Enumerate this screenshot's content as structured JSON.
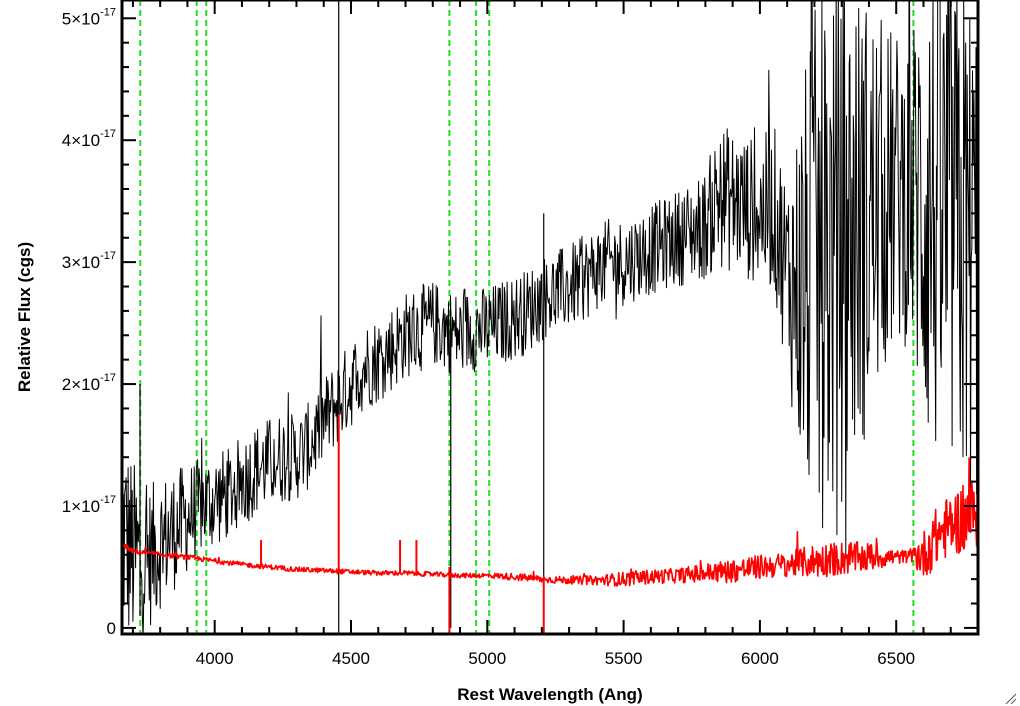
{
  "chart_data": {
    "type": "line",
    "xlabel": "Rest Wavelength (Ang)",
    "ylabel": "Relative Flux (cgs)",
    "xlim": [
      3660,
      6800
    ],
    "ylim": [
      -0.05,
      5.15
    ],
    "y_unit_exponent": "-17",
    "x_ticks": [
      4000,
      4500,
      5000,
      5500,
      6000,
      6500
    ],
    "x_tick_labels": [
      "4000",
      "4500",
      "5000",
      "5500",
      "6000",
      "6500"
    ],
    "y_ticks": [
      0,
      1,
      2,
      3,
      4,
      5
    ],
    "y_tick_labels": [
      {
        "mantissa": "0",
        "times": "",
        "exponent": ""
      },
      {
        "mantissa": "1",
        "times": "×10",
        "exponent": "-17"
      },
      {
        "mantissa": "2",
        "times": "×10",
        "exponent": "-17"
      },
      {
        "mantissa": "3",
        "times": "×10",
        "exponent": "-17"
      },
      {
        "mantissa": "4",
        "times": "×10",
        "exponent": "-17"
      },
      {
        "mantissa": "5",
        "times": "×10",
        "exponent": "-17"
      }
    ],
    "grid": false,
    "vertical_markers": {
      "x": [
        3727,
        3934,
        3969,
        4861,
        4959,
        5007,
        6563
      ],
      "color": "#22dd22",
      "style": "dashed"
    },
    "series": [
      {
        "color": "#000000",
        "style": "noisy",
        "x": [
          3660,
          3700,
          3750,
          3800,
          3850,
          3900,
          3950,
          4000,
          4050,
          4100,
          4150,
          4200,
          4250,
          4300,
          4350,
          4400,
          4450,
          4500,
          4550,
          4600,
          4650,
          4700,
          4750,
          4800,
          4850,
          4900,
          4950,
          5000,
          5050,
          5100,
          5150,
          5200,
          5250,
          5300,
          5350,
          5400,
          5450,
          5500,
          5550,
          5600,
          5650,
          5700,
          5750,
          5800,
          5850,
          5900,
          5950,
          6000,
          6050,
          6100,
          6150,
          6200,
          6250,
          6300,
          6350,
          6400,
          6450,
          6500,
          6550,
          6600,
          6650,
          6700,
          6750,
          6800
        ],
        "y": [
          0.8,
          0.6,
          0.55,
          0.7,
          0.8,
          0.9,
          1.0,
          1.05,
          1.1,
          1.2,
          1.3,
          1.35,
          1.4,
          1.4,
          1.5,
          1.7,
          1.85,
          2.0,
          2.15,
          2.2,
          2.3,
          2.4,
          2.45,
          2.5,
          2.45,
          2.4,
          2.45,
          2.45,
          2.5,
          2.55,
          2.6,
          2.7,
          2.75,
          2.8,
          2.85,
          2.95,
          3.0,
          3.0,
          3.05,
          3.1,
          3.15,
          3.2,
          3.25,
          3.3,
          3.55,
          3.5,
          3.45,
          3.4,
          3.45,
          2.9,
          2.8,
          2.9,
          3.0,
          3.2,
          3.3,
          3.4,
          3.5,
          3.6,
          3.6,
          3.5,
          3.4,
          3.3,
          3.2,
          3.0
        ],
        "noise": [
          0.9,
          0.8,
          0.6,
          0.55,
          0.5,
          0.45,
          0.4,
          0.4,
          0.38,
          0.38,
          0.38,
          0.38,
          0.38,
          0.36,
          0.36,
          0.36,
          0.36,
          0.36,
          0.36,
          0.36,
          0.36,
          0.36,
          0.36,
          0.35,
          0.35,
          0.35,
          0.35,
          0.35,
          0.35,
          0.35,
          0.35,
          0.35,
          0.35,
          0.35,
          0.35,
          0.35,
          0.36,
          0.36,
          0.36,
          0.37,
          0.38,
          0.4,
          0.42,
          0.45,
          0.6,
          0.6,
          0.6,
          0.6,
          0.7,
          0.8,
          1.6,
          2.2,
          2.2,
          2.2,
          2.0,
          1.8,
          1.5,
          1.3,
          1.3,
          2.0,
          2.2,
          2.2,
          2.2,
          2.2
        ],
        "spikes": [
          {
            "x": 4455,
            "y_min": -0.05,
            "y_max": 5.15
          },
          {
            "x": 5207,
            "y_min": 0.0,
            "y_max": 3.4
          },
          {
            "x": 4866,
            "y_min": 0.0,
            "y_max": 2.6
          },
          {
            "x": 3726,
            "y_min": 0.1,
            "y_max": 2.0
          }
        ]
      },
      {
        "color": "#ff0000",
        "style": "noisy",
        "x": [
          3660,
          3700,
          3800,
          3900,
          4000,
          4100,
          4200,
          4300,
          4400,
          4500,
          4600,
          4700,
          4800,
          4900,
          5000,
          5100,
          5200,
          5300,
          5400,
          5500,
          5600,
          5700,
          5800,
          5900,
          6000,
          6100,
          6200,
          6300,
          6400,
          6500,
          6550,
          6600,
          6650,
          6700,
          6750,
          6800
        ],
        "y": [
          0.68,
          0.63,
          0.6,
          0.58,
          0.55,
          0.52,
          0.5,
          0.48,
          0.47,
          0.46,
          0.45,
          0.45,
          0.44,
          0.43,
          0.43,
          0.42,
          0.4,
          0.39,
          0.39,
          0.4,
          0.42,
          0.43,
          0.45,
          0.47,
          0.5,
          0.52,
          0.55,
          0.57,
          0.58,
          0.58,
          0.59,
          0.6,
          0.75,
          0.85,
          0.9,
          0.95
        ],
        "noise": [
          0.02,
          0.02,
          0.02,
          0.02,
          0.02,
          0.02,
          0.02,
          0.02,
          0.02,
          0.02,
          0.02,
          0.02,
          0.02,
          0.02,
          0.02,
          0.03,
          0.03,
          0.03,
          0.04,
          0.06,
          0.06,
          0.06,
          0.08,
          0.1,
          0.1,
          0.1,
          0.14,
          0.14,
          0.12,
          0.06,
          0.05,
          0.2,
          0.25,
          0.25,
          0.3,
          0.3
        ],
        "spikes": [
          {
            "x": 4455,
            "y_min": 0.45,
            "y_max": 1.75
          },
          {
            "x": 4861,
            "y_min": -0.05,
            "y_max": 0.5
          },
          {
            "x": 5207,
            "y_min": -0.05,
            "y_max": 0.4
          },
          {
            "x": 4170,
            "y_min": 0.5,
            "y_max": 0.72
          },
          {
            "x": 4680,
            "y_min": 0.45,
            "y_max": 0.72
          },
          {
            "x": 4740,
            "y_min": 0.45,
            "y_max": 0.72
          }
        ]
      }
    ]
  }
}
